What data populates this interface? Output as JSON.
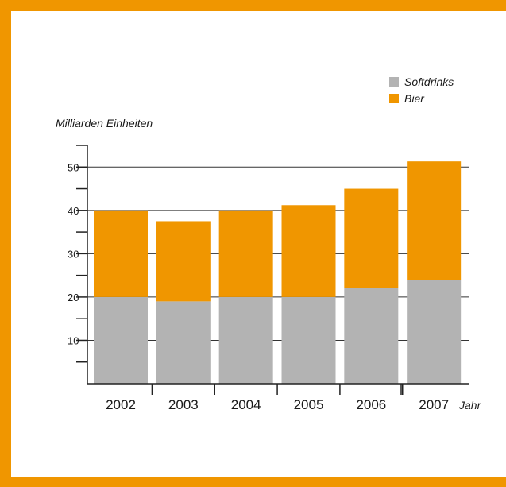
{
  "chart_data": {
    "type": "bar",
    "stacked": true,
    "title": "",
    "ylabel": "Milliarden Einheiten",
    "xlabel": "Jahr",
    "categories": [
      "2002",
      "2003",
      "2004",
      "2005",
      "2006",
      "2007"
    ],
    "series": [
      {
        "name": "Softdrinks",
        "color": "#b3b3b3",
        "values": [
          20,
          19,
          20,
          20,
          22,
          24
        ]
      },
      {
        "name": "Bier",
        "color": "#f09600",
        "values": [
          20,
          18.5,
          20,
          21.2,
          23,
          27.3
        ]
      }
    ],
    "ylim": [
      0,
      55
    ],
    "y_ticks": [
      10,
      20,
      30,
      40,
      50
    ],
    "grid": true,
    "legend_position": "top-right"
  },
  "colors": {
    "frame": "#f09600",
    "grid": "#333333"
  }
}
